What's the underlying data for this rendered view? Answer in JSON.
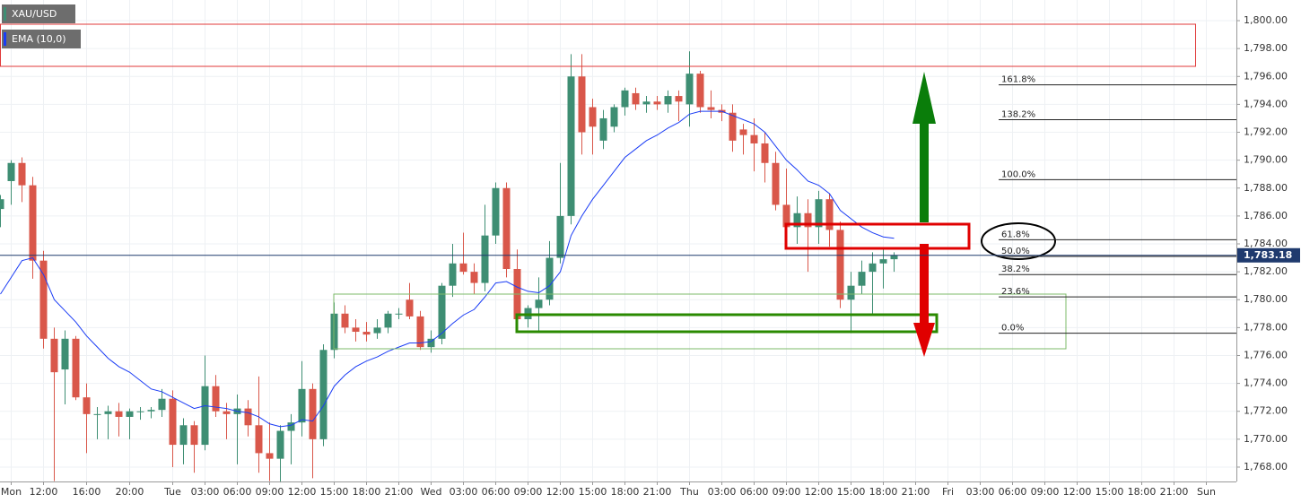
{
  "chart_data": {
    "type": "candlestick",
    "categories": [
      null,
      "Mon",
      null,
      null,
      "12:00",
      null,
      null,
      null,
      "16:00",
      null,
      null,
      null,
      "20:00",
      null,
      null,
      null,
      "Tue",
      null,
      null,
      "03:00",
      null,
      null,
      "06:00",
      null,
      null,
      "09:00",
      null,
      null,
      "12:00",
      null,
      null,
      "15:00",
      null,
      null,
      "18:00",
      null,
      null,
      "21:00",
      null,
      null,
      "Wed",
      null,
      null,
      "03:00",
      null,
      null,
      "06:00",
      null,
      null,
      "09:00",
      null,
      null,
      "12:00",
      null,
      null,
      "15:00",
      null,
      null,
      "18:00",
      null,
      null,
      "21:00",
      null,
      null,
      "Thu",
      null,
      null,
      "03:00",
      null,
      null,
      "06:00",
      null,
      null,
      "09:00",
      null,
      null,
      "12:00",
      null,
      null,
      "15:00",
      null,
      null,
      "18:00",
      null,
      null,
      "21:00",
      null,
      null,
      "Fri",
      null,
      null,
      "03:00",
      null,
      null,
      "06:00",
      null,
      null,
      "09:00",
      null,
      null,
      "12:00",
      null,
      null,
      "15:00",
      null,
      null,
      "18:00",
      null,
      null,
      "21:00",
      null,
      null,
      "Sun",
      null,
      null
    ],
    "series": [
      {
        "name": "XAU/USD",
        "color": "#3e8e73",
        "up_color": "#3e8e73",
        "down_color": "#d9574a",
        "open": [
          1786.5,
          1788.5,
          1789.8,
          1788.2,
          1782.8,
          1777.2,
          1775.0,
          1777.2,
          1773.0,
          1771.8,
          1771.8,
          1772.0,
          1771.6,
          1772.0,
          1772.0,
          1772.1,
          1772.9,
          1769.6,
          1771.0,
          1769.6,
          1773.8,
          1772.0,
          1771.8,
          1772.2,
          1771.0,
          1769.0,
          1768.6,
          1770.6,
          1771.2,
          1773.6,
          1770.0,
          1776.4,
          1779.0,
          1778.0,
          1777.7,
          1777.6,
          1778.0,
          1779.0,
          1780.0,
          1778.8,
          1776.6,
          1777.2,
          1781.0,
          1782.6,
          1782.0,
          1781.2,
          1784.6,
          1788.0,
          1782.2,
          1778.6,
          1779.4,
          1780.0,
          1783.0,
          1786.0,
          1796.0,
          1793.8,
          1791.4,
          1792.4,
          1793.8,
          1794.8,
          1794.0,
          1794.2,
          1794.0,
          1794.6,
          1794.0,
          1796.2,
          1793.8,
          1793.6,
          1793.4,
          1792.2,
          1791.8,
          1791.2,
          1789.8,
          1786.8,
          1785.2,
          1786.2,
          1785.2,
          1787.2,
          1785.0,
          1780.0,
          1781.0,
          1782.0,
          1782.6,
          1782.9,
          null,
          null,
          null,
          null,
          null,
          null,
          null,
          null,
          null,
          null,
          null,
          null,
          null,
          null,
          null,
          null,
          null,
          null,
          null,
          null,
          null,
          null,
          null,
          null,
          null,
          null,
          null,
          null,
          null,
          null,
          null
        ],
        "high": [
          1787.5,
          1790.0,
          1790.2,
          1788.8,
          1783.5,
          1778.0,
          1777.8,
          1777.4,
          1774.0,
          1772.3,
          1772.4,
          1772.6,
          1772.2,
          1772.3,
          1772.3,
          1773.6,
          1773.5,
          1771.5,
          1771.3,
          1776.0,
          1774.6,
          1772.6,
          1773.2,
          1772.8,
          1774.5,
          1771.2,
          1771.0,
          1771.8,
          1775.6,
          1774.0,
          1776.8,
          1779.8,
          1779.6,
          1778.6,
          1778.4,
          1778.6,
          1779.2,
          1779.4,
          1781.2,
          1779.2,
          1777.8,
          1781.2,
          1784.0,
          1784.8,
          1782.6,
          1786.8,
          1788.4,
          1788.4,
          1783.6,
          1779.6,
          1781.6,
          1784.2,
          1789.8,
          1797.6,
          1797.6,
          1794.4,
          1793.6,
          1794.0,
          1795.2,
          1795.2,
          1794.6,
          1794.6,
          1795.0,
          1795.0,
          1797.8,
          1796.4,
          1795.0,
          1794.0,
          1794.0,
          1792.6,
          1793.0,
          1792.0,
          1790.6,
          1789.4,
          1787.4,
          1787.2,
          1787.8,
          1787.6,
          1785.6,
          1782.0,
          1782.8,
          1783.4,
          1783.6,
          1783.4,
          null,
          null,
          null,
          null,
          null,
          null,
          null,
          null,
          null,
          null,
          null,
          null,
          null,
          null,
          null,
          null,
          null,
          null,
          null,
          null,
          null,
          null,
          null,
          null,
          null,
          null,
          null,
          null,
          null,
          null,
          null
        ],
        "low": [
          1785.2,
          1786.8,
          1787.0,
          1781.5,
          1776.5,
          1767.0,
          1772.5,
          1772.8,
          1769.0,
          1770.0,
          1770.0,
          1770.2,
          1770.0,
          1771.4,
          1771.5,
          1771.6,
          1768.0,
          1768.2,
          1767.6,
          1769.2,
          1771.6,
          1770.0,
          1768.2,
          1770.2,
          1767.6,
          1767.0,
          1766.9,
          1768.2,
          1770.2,
          1767.2,
          1769.5,
          1775.8,
          1777.6,
          1777.0,
          1777.0,
          1777.2,
          1777.6,
          1778.6,
          1778.6,
          1776.4,
          1776.2,
          1776.8,
          1780.2,
          1781.8,
          1780.4,
          1780.6,
          1784.0,
          1781.6,
          1778.2,
          1778.0,
          1777.8,
          1779.6,
          1782.6,
          1785.4,
          1790.4,
          1790.4,
          1790.8,
          1792.0,
          1793.2,
          1793.6,
          1793.4,
          1793.6,
          1793.4,
          1792.8,
          1792.4,
          1793.4,
          1793.0,
          1792.8,
          1790.6,
          1790.4,
          1789.2,
          1788.4,
          1786.4,
          1784.6,
          1784.0,
          1782.0,
          1784.0,
          1783.8,
          1779.4,
          1777.6,
          1780.4,
          1779.0,
          1780.8,
          1782.0,
          null,
          null,
          null,
          null,
          null,
          null,
          null,
          null,
          null,
          null,
          null,
          null,
          null,
          null,
          null,
          null,
          null,
          null,
          null,
          null,
          null,
          null,
          null,
          null,
          null,
          null,
          null,
          null,
          null,
          null,
          null
        ],
        "close": [
          1787.2,
          1789.8,
          1788.2,
          1782.8,
          1777.2,
          1774.8,
          1777.2,
          1773.0,
          1771.8,
          1771.8,
          1772.0,
          1771.6,
          1772.0,
          1772.0,
          1772.1,
          1772.9,
          1769.6,
          1771.0,
          1769.6,
          1773.8,
          1772.0,
          1771.8,
          1772.2,
          1771.0,
          1769.0,
          1768.6,
          1770.6,
          1771.2,
          1773.6,
          1770.0,
          1776.4,
          1779.0,
          1778.0,
          1777.7,
          1777.5,
          1778.0,
          1779.0,
          1779.0,
          1778.8,
          1776.6,
          1777.2,
          1781.0,
          1782.6,
          1782.0,
          1781.2,
          1784.6,
          1788.0,
          1782.2,
          1778.6,
          1779.4,
          1780.0,
          1783.0,
          1786.0,
          1796.0,
          1792.0,
          1792.4,
          1793.0,
          1793.8,
          1795.0,
          1794.0,
          1794.2,
          1794.0,
          1794.6,
          1794.2,
          1796.2,
          1793.8,
          1793.6,
          1793.4,
          1791.4,
          1791.8,
          1791.2,
          1789.8,
          1786.8,
          1785.2,
          1786.2,
          1785.2,
          1787.2,
          1785.0,
          1780.0,
          1781.0,
          1782.0,
          1782.6,
          1782.9,
          1783.18,
          null,
          null,
          null,
          null,
          null,
          null,
          null,
          null,
          null,
          null,
          null,
          null,
          null,
          null,
          null,
          null,
          null,
          null,
          null,
          null,
          null,
          null,
          null,
          null,
          null,
          null,
          null,
          null,
          null,
          null,
          null
        ]
      },
      {
        "name": "EMA (10,0)",
        "color": "#1a3cf5",
        "values": [
          1780.4,
          1781.6,
          1782.8,
          1783.0,
          1781.8,
          1780.0,
          1779.2,
          1778.4,
          1777.4,
          1776.6,
          1775.8,
          1775.2,
          1774.8,
          1774.2,
          1773.6,
          1773.4,
          1773.0,
          1772.6,
          1772.2,
          1772.4,
          1772.3,
          1772.2,
          1772.0,
          1771.9,
          1771.6,
          1771.1,
          1770.9,
          1771.0,
          1771.4,
          1771.3,
          1772.4,
          1773.8,
          1774.6,
          1775.2,
          1775.6,
          1775.9,
          1776.3,
          1776.6,
          1776.9,
          1776.9,
          1777.0,
          1777.6,
          1778.3,
          1778.9,
          1779.3,
          1780.2,
          1781.2,
          1781.3,
          1780.9,
          1780.6,
          1780.5,
          1781.0,
          1782.0,
          1784.6,
          1786.0,
          1787.2,
          1788.2,
          1789.2,
          1790.2,
          1790.8,
          1791.4,
          1791.8,
          1792.3,
          1792.7,
          1793.3,
          1793.5,
          1793.5,
          1793.5,
          1793.2,
          1792.9,
          1792.6,
          1792.0,
          1791.0,
          1790.0,
          1789.3,
          1788.5,
          1788.2,
          1787.6,
          1786.4,
          1785.8,
          1785.2,
          1784.8,
          1784.5,
          1784.4,
          null,
          null,
          null,
          null,
          null,
          null,
          null,
          null,
          null,
          null,
          null,
          null,
          null,
          null,
          null,
          null,
          null,
          null,
          null,
          null,
          null,
          null,
          null,
          null,
          null,
          null,
          null,
          null,
          null,
          null,
          null
        ]
      }
    ],
    "ylim": [
      1766.97,
      1801.48
    ],
    "yticks": [
      {
        "value": 1768,
        "label": "1,768.00"
      },
      {
        "value": 1770,
        "label": "1,770.00"
      },
      {
        "value": 1772,
        "label": "1,772.00"
      },
      {
        "value": 1774,
        "label": "1,774.00"
      },
      {
        "value": 1776,
        "label": "1,776.00"
      },
      {
        "value": 1778,
        "label": "1,778.00"
      },
      {
        "value": 1780,
        "label": "1,780.00"
      },
      {
        "value": 1782,
        "label": "1,782.00"
      },
      {
        "value": 1784,
        "label": "1,784.00"
      },
      {
        "value": 1786,
        "label": "1,786.00"
      },
      {
        "value": 1788,
        "label": "1,788.00"
      },
      {
        "value": 1790,
        "label": "1,790.00"
      },
      {
        "value": 1792,
        "label": "1,792.00"
      },
      {
        "value": 1794,
        "label": "1,794.00"
      },
      {
        "value": 1796,
        "label": "1,796.00"
      },
      {
        "value": 1798,
        "label": "1,798.00"
      },
      {
        "value": 1800,
        "label": "1,800.00"
      }
    ],
    "grid": true,
    "last_price": {
      "value": 1783.18,
      "label": "1,783.18",
      "color": "#1f3a6e"
    },
    "fib_levels": [
      {
        "label": "161.8%",
        "value": 1795.4
      },
      {
        "label": "138.2%",
        "value": 1792.9
      },
      {
        "label": "100.0%",
        "value": 1788.6
      },
      {
        "label": "61.8%",
        "value": 1784.3
      },
      {
        "label": "50.0%",
        "value": 1783.1
      },
      {
        "label": "38.2%",
        "value": 1781.8
      },
      {
        "label": "23.6%",
        "value": 1780.2
      },
      {
        "label": "0.0%",
        "value": 1777.6
      }
    ]
  }
}
